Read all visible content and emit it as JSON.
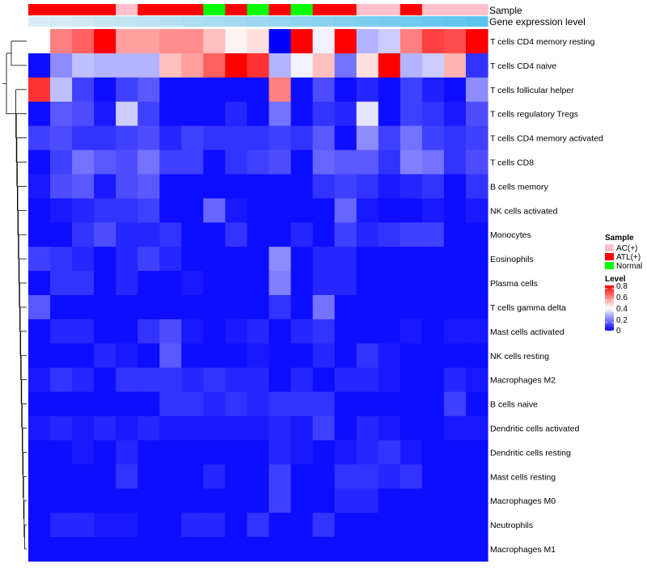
{
  "chart_data": {
    "type": "heatmap",
    "title": "",
    "annotation_tracks": [
      "Sample",
      "Gene expression level"
    ],
    "sample_groups": [
      "ATL(+)",
      "ATL(+)",
      "ATL(+)",
      "ATL(+)",
      "AC(+)",
      "ATL(+)",
      "ATL(+)",
      "ATL(+)",
      "Normal",
      "ATL(+)",
      "Normal",
      "ATL(+)",
      "Normal",
      "ATL(+)",
      "ATL(+)",
      "AC(+)",
      "AC(+)",
      "ATL(+)",
      "AC(+)",
      "AC(+)",
      "AC(+)"
    ],
    "row_labels": [
      "T cells CD4 memory resting",
      "T cells CD4 naive",
      "T cells follicular helper",
      "T cells regulatory  Tregs",
      "T cells CD4 memory activated",
      "T cells CD8",
      "B cells memory",
      "NK cells activated",
      "Monocytes",
      "Eosinophils",
      "Plasma cells",
      "T cells gamma delta",
      "Mast cells activated",
      "NK cells resting",
      "Macrophages M2",
      "B cells naive",
      "Dendritic cells activated",
      "Dendritic cells resting",
      "Mast cells resting",
      "Macrophages M0",
      "Neutrophils",
      "Macrophages M1"
    ],
    "values": [
      [
        0.4,
        0.6,
        0.65,
        0.8,
        0.55,
        0.55,
        0.58,
        0.58,
        0.5,
        0.42,
        0.45,
        0.0,
        0.8,
        0.38,
        0.8,
        0.28,
        0.32,
        0.6,
        0.7,
        0.68,
        0.8
      ],
      [
        0.02,
        0.22,
        0.3,
        0.28,
        0.28,
        0.28,
        0.5,
        0.55,
        0.65,
        0.8,
        0.72,
        0.28,
        0.38,
        0.5,
        0.18,
        0.45,
        0.8,
        0.28,
        0.32,
        0.52,
        0.08
      ],
      [
        0.72,
        0.3,
        0.1,
        0.02,
        0.1,
        0.14,
        0.02,
        0.02,
        0.02,
        0.02,
        0.02,
        0.6,
        0.02,
        0.12,
        0.02,
        0.06,
        0.02,
        0.1,
        0.05,
        0.02,
        0.22
      ],
      [
        0.02,
        0.14,
        0.12,
        0.04,
        0.32,
        0.1,
        0.02,
        0.02,
        0.02,
        0.06,
        0.02,
        0.18,
        0.02,
        0.08,
        0.06,
        0.36,
        0.02,
        0.1,
        0.08,
        0.04,
        0.12
      ],
      [
        0.1,
        0.12,
        0.08,
        0.08,
        0.1,
        0.12,
        0.06,
        0.1,
        0.08,
        0.08,
        0.08,
        0.1,
        0.08,
        0.14,
        0.02,
        0.22,
        0.1,
        0.18,
        0.1,
        0.08,
        0.1
      ],
      [
        0.02,
        0.1,
        0.18,
        0.14,
        0.12,
        0.18,
        0.1,
        0.1,
        0.02,
        0.08,
        0.1,
        0.12,
        0.02,
        0.16,
        0.14,
        0.14,
        0.08,
        0.2,
        0.18,
        0.08,
        0.12
      ],
      [
        0.04,
        0.12,
        0.14,
        0.04,
        0.12,
        0.14,
        0.02,
        0.02,
        0.02,
        0.02,
        0.02,
        0.02,
        0.02,
        0.08,
        0.1,
        0.08,
        0.04,
        0.06,
        0.08,
        0.02,
        0.08
      ],
      [
        0.02,
        0.04,
        0.06,
        0.08,
        0.08,
        0.1,
        0.02,
        0.02,
        0.16,
        0.04,
        0.02,
        0.02,
        0.02,
        0.02,
        0.16,
        0.04,
        0.02,
        0.02,
        0.04,
        0.02,
        0.04
      ],
      [
        0.02,
        0.02,
        0.08,
        0.12,
        0.06,
        0.06,
        0.08,
        0.02,
        0.02,
        0.08,
        0.02,
        0.02,
        0.06,
        0.02,
        0.1,
        0.06,
        0.08,
        0.1,
        0.1,
        0.02,
        0.02
      ],
      [
        0.1,
        0.08,
        0.06,
        0.02,
        0.06,
        0.1,
        0.06,
        0.02,
        0.02,
        0.02,
        0.02,
        0.22,
        0.02,
        0.06,
        0.06,
        0.02,
        0.02,
        0.02,
        0.02,
        0.02,
        0.02
      ],
      [
        0.02,
        0.08,
        0.08,
        0.02,
        0.06,
        0.02,
        0.02,
        0.04,
        0.02,
        0.02,
        0.02,
        0.2,
        0.02,
        0.06,
        0.06,
        0.02,
        0.02,
        0.02,
        0.02,
        0.02,
        0.02
      ],
      [
        0.14,
        0.02,
        0.02,
        0.02,
        0.02,
        0.02,
        0.02,
        0.02,
        0.02,
        0.02,
        0.02,
        0.08,
        0.02,
        0.18,
        0.02,
        0.02,
        0.02,
        0.02,
        0.02,
        0.02,
        0.02
      ],
      [
        0.02,
        0.06,
        0.06,
        0.02,
        0.02,
        0.08,
        0.12,
        0.04,
        0.02,
        0.04,
        0.06,
        0.02,
        0.06,
        0.08,
        0.02,
        0.02,
        0.02,
        0.04,
        0.02,
        0.04,
        0.04
      ],
      [
        0.02,
        0.02,
        0.02,
        0.06,
        0.04,
        0.02,
        0.14,
        0.02,
        0.02,
        0.02,
        0.04,
        0.02,
        0.02,
        0.06,
        0.02,
        0.08,
        0.04,
        0.02,
        0.02,
        0.02,
        0.02
      ],
      [
        0.04,
        0.08,
        0.06,
        0.02,
        0.08,
        0.08,
        0.08,
        0.06,
        0.08,
        0.06,
        0.06,
        0.02,
        0.06,
        0.02,
        0.06,
        0.06,
        0.04,
        0.02,
        0.02,
        0.06,
        0.04
      ],
      [
        0.02,
        0.02,
        0.02,
        0.02,
        0.02,
        0.02,
        0.08,
        0.08,
        0.06,
        0.08,
        0.06,
        0.08,
        0.08,
        0.08,
        0.02,
        0.02,
        0.02,
        0.02,
        0.02,
        0.1,
        0.02
      ],
      [
        0.04,
        0.06,
        0.04,
        0.06,
        0.04,
        0.06,
        0.04,
        0.04,
        0.04,
        0.04,
        0.04,
        0.06,
        0.04,
        0.1,
        0.02,
        0.06,
        0.04,
        0.02,
        0.02,
        0.04,
        0.04
      ],
      [
        0.02,
        0.02,
        0.04,
        0.02,
        0.06,
        0.02,
        0.02,
        0.02,
        0.02,
        0.02,
        0.02,
        0.06,
        0.04,
        0.02,
        0.04,
        0.06,
        0.08,
        0.04,
        0.02,
        0.02,
        0.02
      ],
      [
        0.02,
        0.02,
        0.02,
        0.02,
        0.08,
        0.02,
        0.02,
        0.02,
        0.06,
        0.02,
        0.02,
        0.1,
        0.02,
        0.02,
        0.08,
        0.08,
        0.06,
        0.08,
        0.02,
        0.02,
        0.02
      ],
      [
        0.02,
        0.02,
        0.02,
        0.02,
        0.02,
        0.02,
        0.02,
        0.02,
        0.02,
        0.02,
        0.02,
        0.1,
        0.02,
        0.02,
        0.06,
        0.06,
        0.02,
        0.02,
        0.02,
        0.02,
        0.02
      ],
      [
        0.02,
        0.06,
        0.06,
        0.04,
        0.04,
        0.02,
        0.02,
        0.06,
        0.06,
        0.02,
        0.08,
        0.02,
        0.02,
        0.08,
        0.02,
        0.02,
        0.02,
        0.02,
        0.02,
        0.02,
        0.02
      ],
      [
        0.02,
        0.02,
        0.02,
        0.02,
        0.02,
        0.02,
        0.02,
        0.02,
        0.02,
        0.02,
        0.02,
        0.02,
        0.02,
        0.02,
        0.02,
        0.02,
        0.02,
        0.02,
        0.02,
        0.02,
        0.02
      ]
    ],
    "legend_sample": {
      "title": "Sample",
      "entries": [
        {
          "label": "AC(+)",
          "color": "#FFC0CB"
        },
        {
          "label": "ATL(+)",
          "color": "#FF0000"
        },
        {
          "label": "Normal",
          "color": "#00FF00"
        }
      ]
    },
    "legend_level": {
      "title": "Level",
      "range": [
        0,
        0.8
      ],
      "ticks": [
        "0.8",
        "0.6",
        "0.4",
        "0.2",
        "0"
      ],
      "colors": [
        "#0000FF",
        "#FFFFFF",
        "#FF0000"
      ]
    },
    "legend_placement": "right"
  }
}
